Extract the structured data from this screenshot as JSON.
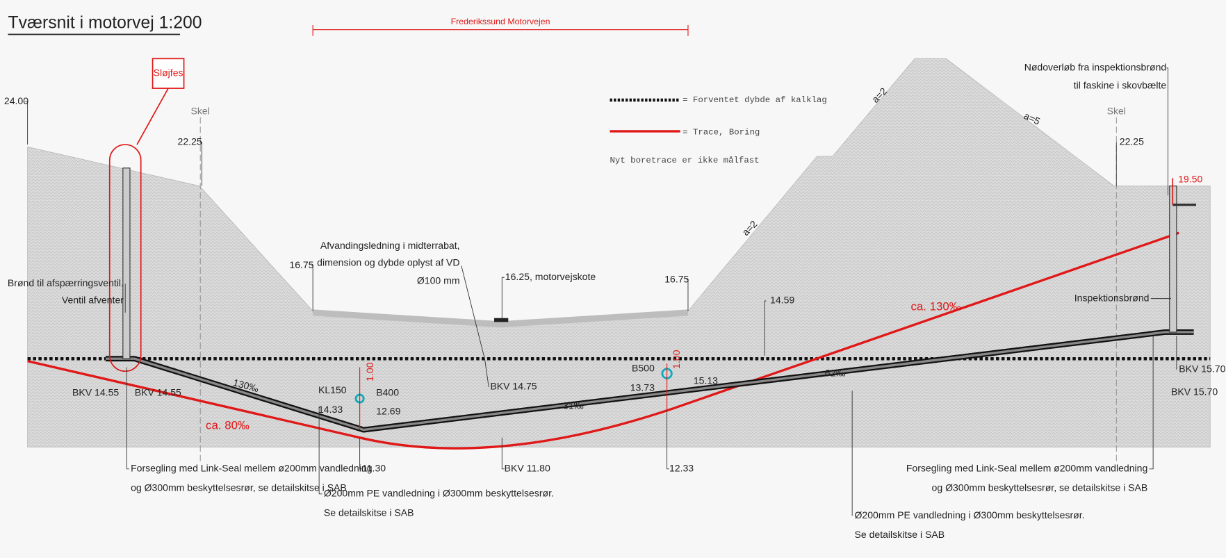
{
  "title": "Tværsnit i motorvej 1:200",
  "road_name": "Frederikssund Motorvejen",
  "removed": "Sløjfes",
  "legend": {
    "chalk": "= Forventet dybde af kalklag",
    "trace": "= Trace, Boring",
    "note": "Nyt boretrace er ikke målfast"
  },
  "levels": {
    "top_left": "24.00",
    "skel_left": "Skel",
    "skel_right": "Skel",
    "boundary_left": "22.25",
    "boundary_right": "22.25",
    "road_edge_left": "16.75",
    "road_edge_right": "16.75",
    "road_level": "16.25, motorvejskote",
    "chalk_level": "14.59",
    "outlet": "19.50"
  },
  "slopes": {
    "left_upper": "a=2",
    "right_upper": "a=5",
    "left_lower": "a=2"
  },
  "notes": {
    "overflow": [
      "Nødoverløb fra inspektionsbrønd",
      "til faskine i skovbælte"
    ],
    "drain": [
      "Afvandingsledning i midterrabat,",
      "dimension og dybde oplyst af VD",
      "Ø100 mm"
    ],
    "valve_well": [
      "Brønd til afspærringsventil.",
      "Ventil afventer"
    ],
    "inspection_well": "Inspektionsbrønd",
    "seal_left": [
      "Forsegling med Link-Seal mellem ø200mm vandledning",
      "og Ø300mm beskyttelsesrør, se detailskitse i SAB"
    ],
    "seal_right": [
      "Forsegling med Link-Seal mellem ø200mm vandledning",
      "og Ø300mm beskyttelsesrør, se detailskitse i SAB"
    ],
    "pipe_left": [
      "Ø200mm PE vandledning i Ø300mm beskyttelsesrør.",
      "Se detailskitse i SAB"
    ],
    "pipe_right": [
      "Ø200mm PE vandledning i Ø300mm beskyttelsesrør.",
      "Se detailskitse i SAB"
    ]
  },
  "pipe": {
    "bkv_left_a": "BKV 14.55",
    "bkv_left_b": "BKV 14.55",
    "grade_left": "130‰",
    "grade_mid": "31‰",
    "grade_right": "62‰",
    "bkv_mid": "BKV 14.75",
    "bkv_low": "BKV 11.80",
    "bkv_right_a": "BKV 15.70",
    "bkv_right_b": "BKV 15.70",
    "low_point": "11.30",
    "cross_point": "12.33"
  },
  "crossings": {
    "kl150": "KL150",
    "kl150_level": "14.33",
    "b400": "B400",
    "b400_level": "12.69",
    "b500": "B500",
    "b500_level": "13.73",
    "b500_top": "15.13",
    "clear_left": "1.00",
    "clear_right": "1.00"
  },
  "boring": {
    "left": "ca. 80‰",
    "right": "ca. 130‰"
  }
}
